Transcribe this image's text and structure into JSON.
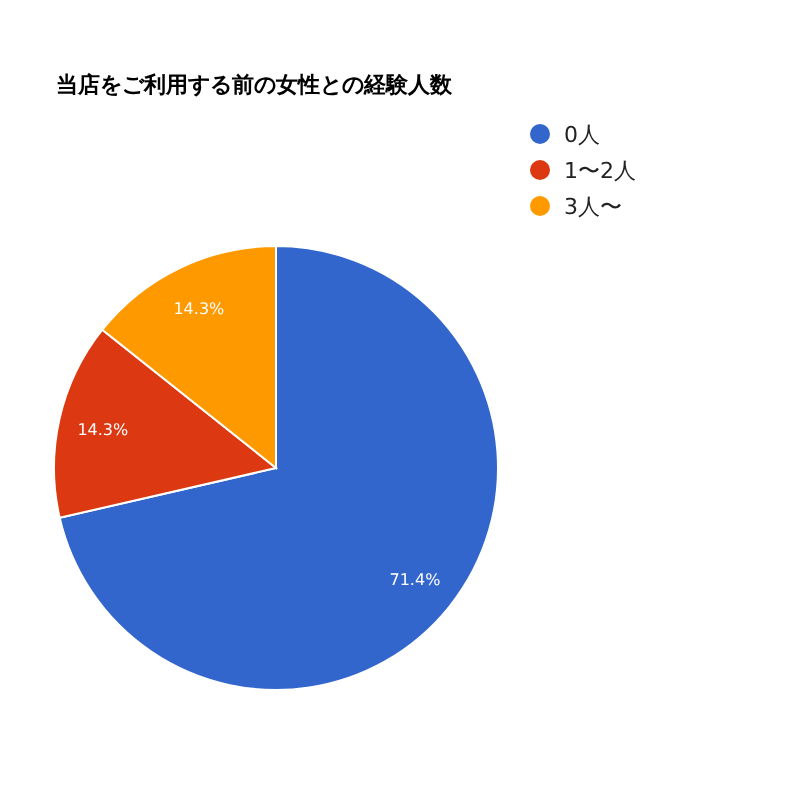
{
  "chart_data": {
    "type": "pie",
    "title": "当店をご利用する前の女性との経験人数",
    "categories": [
      "0人",
      "1〜2人",
      "3人〜"
    ],
    "values": [
      71.4,
      14.3,
      14.3
    ],
    "colors": [
      "#3366cc",
      "#dc3912",
      "#ff9900"
    ],
    "value_labels": [
      "71.4%",
      "14.3%",
      "14.3%"
    ],
    "legend": "top right"
  }
}
